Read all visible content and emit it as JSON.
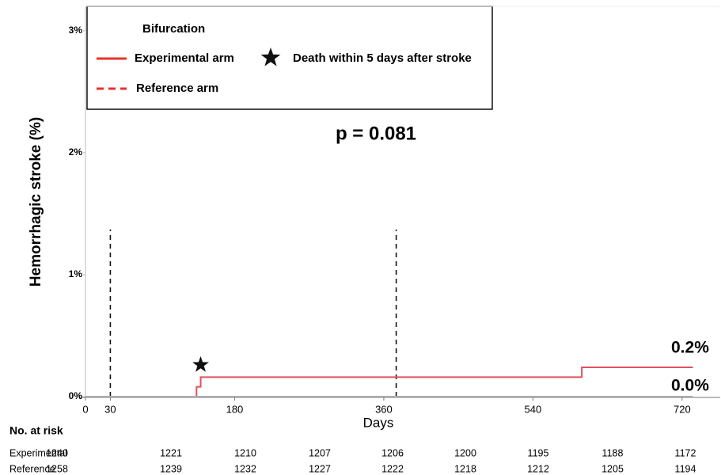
{
  "legend": {
    "title": "Bifurcation",
    "death_label": "Death within 5 days after stroke"
  },
  "chart_data": {
    "type": "line",
    "ylabel": "Hemorrhagic stroke (%)",
    "xlabel": "Days",
    "annotation": "p = 0.081",
    "xlim": [
      0,
      766
    ],
    "ylim": [
      0,
      3.2
    ],
    "xticks": [
      0,
      30,
      180,
      360,
      540,
      720
    ],
    "yticks": [
      {
        "value": 0,
        "label": "0%"
      },
      {
        "value": 1,
        "label": "1%"
      },
      {
        "value": 2,
        "label": "2%"
      },
      {
        "value": 3,
        "label": "3%"
      }
    ],
    "reference_lines": {
      "x": [
        30,
        375
      ],
      "height": 1.37
    },
    "death_events": {
      "x": [
        139
      ],
      "y": [
        0.26
      ]
    },
    "series": [
      {
        "name": "Experimental arm",
        "color": "#e0505f",
        "dashed": false,
        "x": [
          0,
          134,
          134,
          139,
          139,
          599,
          599,
          733
        ],
        "values": [
          0,
          0,
          0.08,
          0.08,
          0.16,
          0.16,
          0.24,
          0.24
        ],
        "end_label": "0.2%"
      },
      {
        "name": "Reference arm",
        "color": "#e0505f",
        "dashed": true,
        "x": [
          0,
          733
        ],
        "values": [
          0,
          0
        ],
        "end_label": "0.0%"
      }
    ]
  },
  "risk_table": {
    "title": "No. at risk",
    "rows": [
      {
        "name": "Experimental",
        "values": [
          1240,
          1221,
          1210,
          1207,
          1206,
          1200,
          1195,
          1188,
          1172
        ]
      },
      {
        "name": "Reference",
        "values": [
          1258,
          1239,
          1232,
          1227,
          1222,
          1218,
          1212,
          1205,
          1194
        ]
      }
    ]
  }
}
